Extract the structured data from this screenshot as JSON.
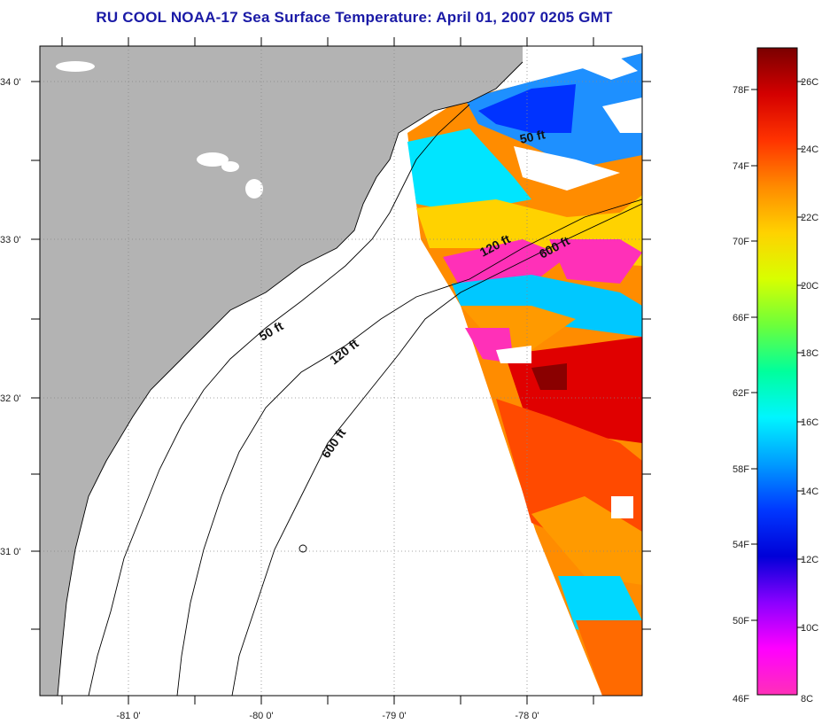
{
  "title": "RU COOL  NOAA-17  Sea Surface Temperature:  April 01, 2007 0205 GMT",
  "map": {
    "lon_labels": [
      "-81 0'",
      "-80 0'",
      "-79 0'",
      "-78 0'"
    ],
    "lat_labels": [
      "34 0'",
      "33 0'",
      "32 0'",
      "31 0'"
    ],
    "contour_labels": [
      {
        "text": "50 ft"
      },
      {
        "text": "120 ft"
      },
      {
        "text": "600 ft"
      },
      {
        "text": "50 ft"
      },
      {
        "text": "120 ft"
      },
      {
        "text": "600 ft"
      }
    ],
    "land_color": "#b3b3b3"
  },
  "colorbar": {
    "fahrenheit_labels": [
      "78F",
      "74F",
      "70F",
      "66F",
      "62F",
      "58F",
      "54F",
      "50F",
      "46F"
    ],
    "celsius_labels": [
      "26C",
      "24C",
      "22C",
      "20C",
      "18C",
      "16C",
      "14C",
      "12C",
      "10C",
      "8C"
    ],
    "gradient_stops": [
      "#7a0000",
      "#d40000",
      "#ff3300",
      "#ff8a00",
      "#ffd200",
      "#d8ff00",
      "#6dff3a",
      "#00ff9c",
      "#00f5ff",
      "#009cff",
      "#0038ff",
      "#0000d8",
      "#8a00ff",
      "#ff00ff",
      "#ff30b8"
    ]
  }
}
